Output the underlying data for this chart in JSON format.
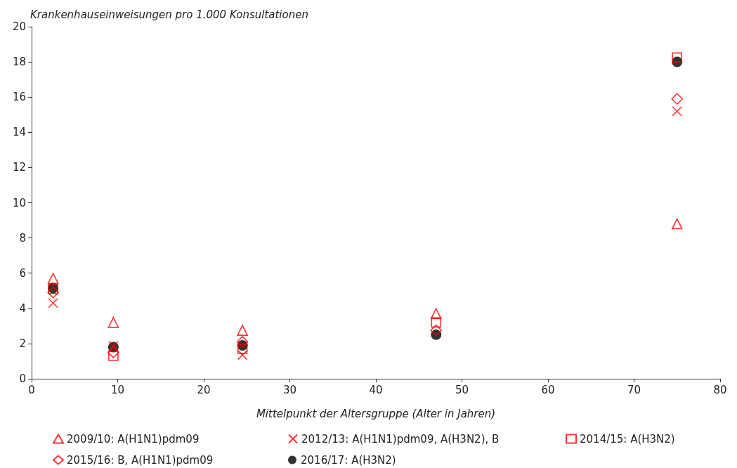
{
  "chart_data": {
    "type": "scatter",
    "ylabel": "Krankenhauseinweisungen pro 1.000 Konsultationen",
    "xlabel": "Mittelpunkt der Altersgruppe (Alter in Jahren)",
    "x": [
      2.5,
      9.5,
      24.5,
      47,
      75
    ],
    "series": [
      {
        "name": "2009/10: A(H1N1)pdm09",
        "color": "#ff0000",
        "marker": "triangle",
        "values": [
          5.7,
          3.2,
          2.75,
          3.7,
          8.8
        ]
      },
      {
        "name": "2012/13: A(H1N1)pdm09, A(H3N2), B",
        "color": "#ff0000",
        "marker": "cross",
        "values": [
          4.3,
          1.85,
          1.35,
          null,
          15.2
        ]
      },
      {
        "name": "2014/15: A(H3N2)",
        "color": "#ff0000",
        "marker": "square",
        "values": [
          5.1,
          1.3,
          1.7,
          3.2,
          18.25
        ]
      },
      {
        "name": "2015/16: B, A(H1N1)pdm09",
        "color": "#ff0000",
        "marker": "diamond",
        "values": [
          4.9,
          1.5,
          2.1,
          2.75,
          15.9
        ]
      },
      {
        "name": "2016/17: A(H3N2)",
        "color": "#000000",
        "marker": "circle",
        "values": [
          5.15,
          1.8,
          1.9,
          2.5,
          18.0
        ]
      }
    ],
    "xlim": [
      0,
      80
    ],
    "xticks": [
      0,
      10,
      20,
      30,
      40,
      50,
      60,
      70,
      80
    ],
    "ylim": [
      0,
      20
    ],
    "yticks": [
      0,
      2,
      4,
      6,
      8,
      10,
      12,
      14,
      16,
      18,
      20
    ],
    "grid": false,
    "legend": "bottom"
  }
}
